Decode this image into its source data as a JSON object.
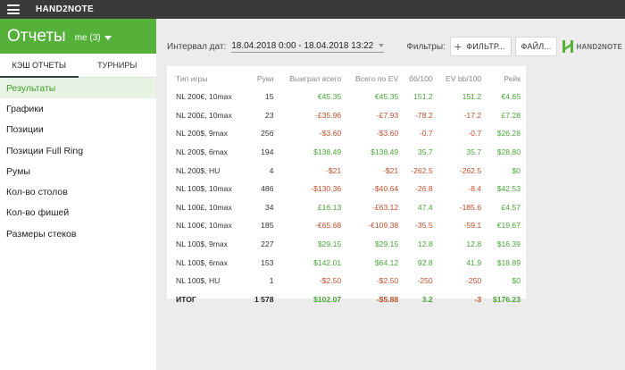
{
  "app": {
    "name": "HAND2NOTE",
    "menu_icon": "hamburger-icon"
  },
  "header": {
    "title": "Отчеты",
    "user": "me (3)"
  },
  "sidebar": {
    "tabs": [
      {
        "label": "КЭШ ОТЧЕТЫ",
        "active": true
      },
      {
        "label": "ТУРНИРЫ",
        "active": false
      }
    ],
    "items": [
      {
        "label": "Результаты",
        "active": true
      },
      {
        "label": "Графики"
      },
      {
        "label": "Позиции"
      },
      {
        "label": "Позиции Full Ring"
      },
      {
        "label": "Румы"
      },
      {
        "label": "Кол-во столов"
      },
      {
        "label": "Кол-во фишей"
      },
      {
        "label": "Размеры стеков"
      }
    ]
  },
  "toolbar": {
    "date_label": "Интервал дат:",
    "date_value": "18.04.2018 0:00 - 18.04.2018 13:22",
    "filters_label": "Фильтры:",
    "filter_button": "ФИЛЬТР...",
    "file_button": "ФАЙЛ...",
    "logo_text": "HAND2NOTE"
  },
  "colors": {
    "brand_green": "#56b13b",
    "appbar": "#3a3a3a",
    "positive": "#4aa53a",
    "negative": "#c0502e"
  },
  "table": {
    "headers": [
      "Тип игры",
      "Руки",
      "Выиграл всего",
      "Всего по EV",
      "бб/100",
      "EV bb/100",
      "Рейк"
    ],
    "rows": [
      [
        "NL 200€, 10max",
        "15",
        "€45.35",
        "€45.35",
        "151.2",
        "151.2",
        "€4.65"
      ],
      [
        "NL 200£, 10max",
        "23",
        "-£35.96",
        "-£7.93",
        "-78.2",
        "-17.2",
        "£7.28"
      ],
      [
        "NL 200$, 9max",
        "256",
        "-$3.60",
        "-$3.60",
        "-0.7",
        "-0.7",
        "$26.28"
      ],
      [
        "NL 200$, 6max",
        "194",
        "$138.49",
        "$138.49",
        "35.7",
        "35.7",
        "$28.80"
      ],
      [
        "NL 200$, HU",
        "4",
        "-$21",
        "-$21",
        "-262.5",
        "-262.5",
        "$0"
      ],
      [
        "NL 100$, 10max",
        "486",
        "-$130.36",
        "-$40.64",
        "-26.8",
        "-8.4",
        "$42.53"
      ],
      [
        "NL 100£, 10max",
        "34",
        "£16.13",
        "-£63.12",
        "47.4",
        "-185.6",
        "£4.57"
      ],
      [
        "NL 100€, 10max",
        "185",
        "-€65.68",
        "-€109.38",
        "-35.5",
        "-59.1",
        "€19.67"
      ],
      [
        "NL 100$, 9max",
        "227",
        "$29.15",
        "$29.15",
        "12.8",
        "12.8",
        "$16.39"
      ],
      [
        "NL 100$, 6max",
        "153",
        "$142.01",
        "$64.12",
        "92.8",
        "41.9",
        "$18.89"
      ],
      [
        "NL 100$, HU",
        "1",
        "-$2.50",
        "-$2.50",
        "-250",
        "-250",
        "$0"
      ]
    ],
    "total": [
      "ИТОГ",
      "1 578",
      "$102.07",
      "-$5.88",
      "3.2",
      "-3",
      "$176.23"
    ]
  }
}
